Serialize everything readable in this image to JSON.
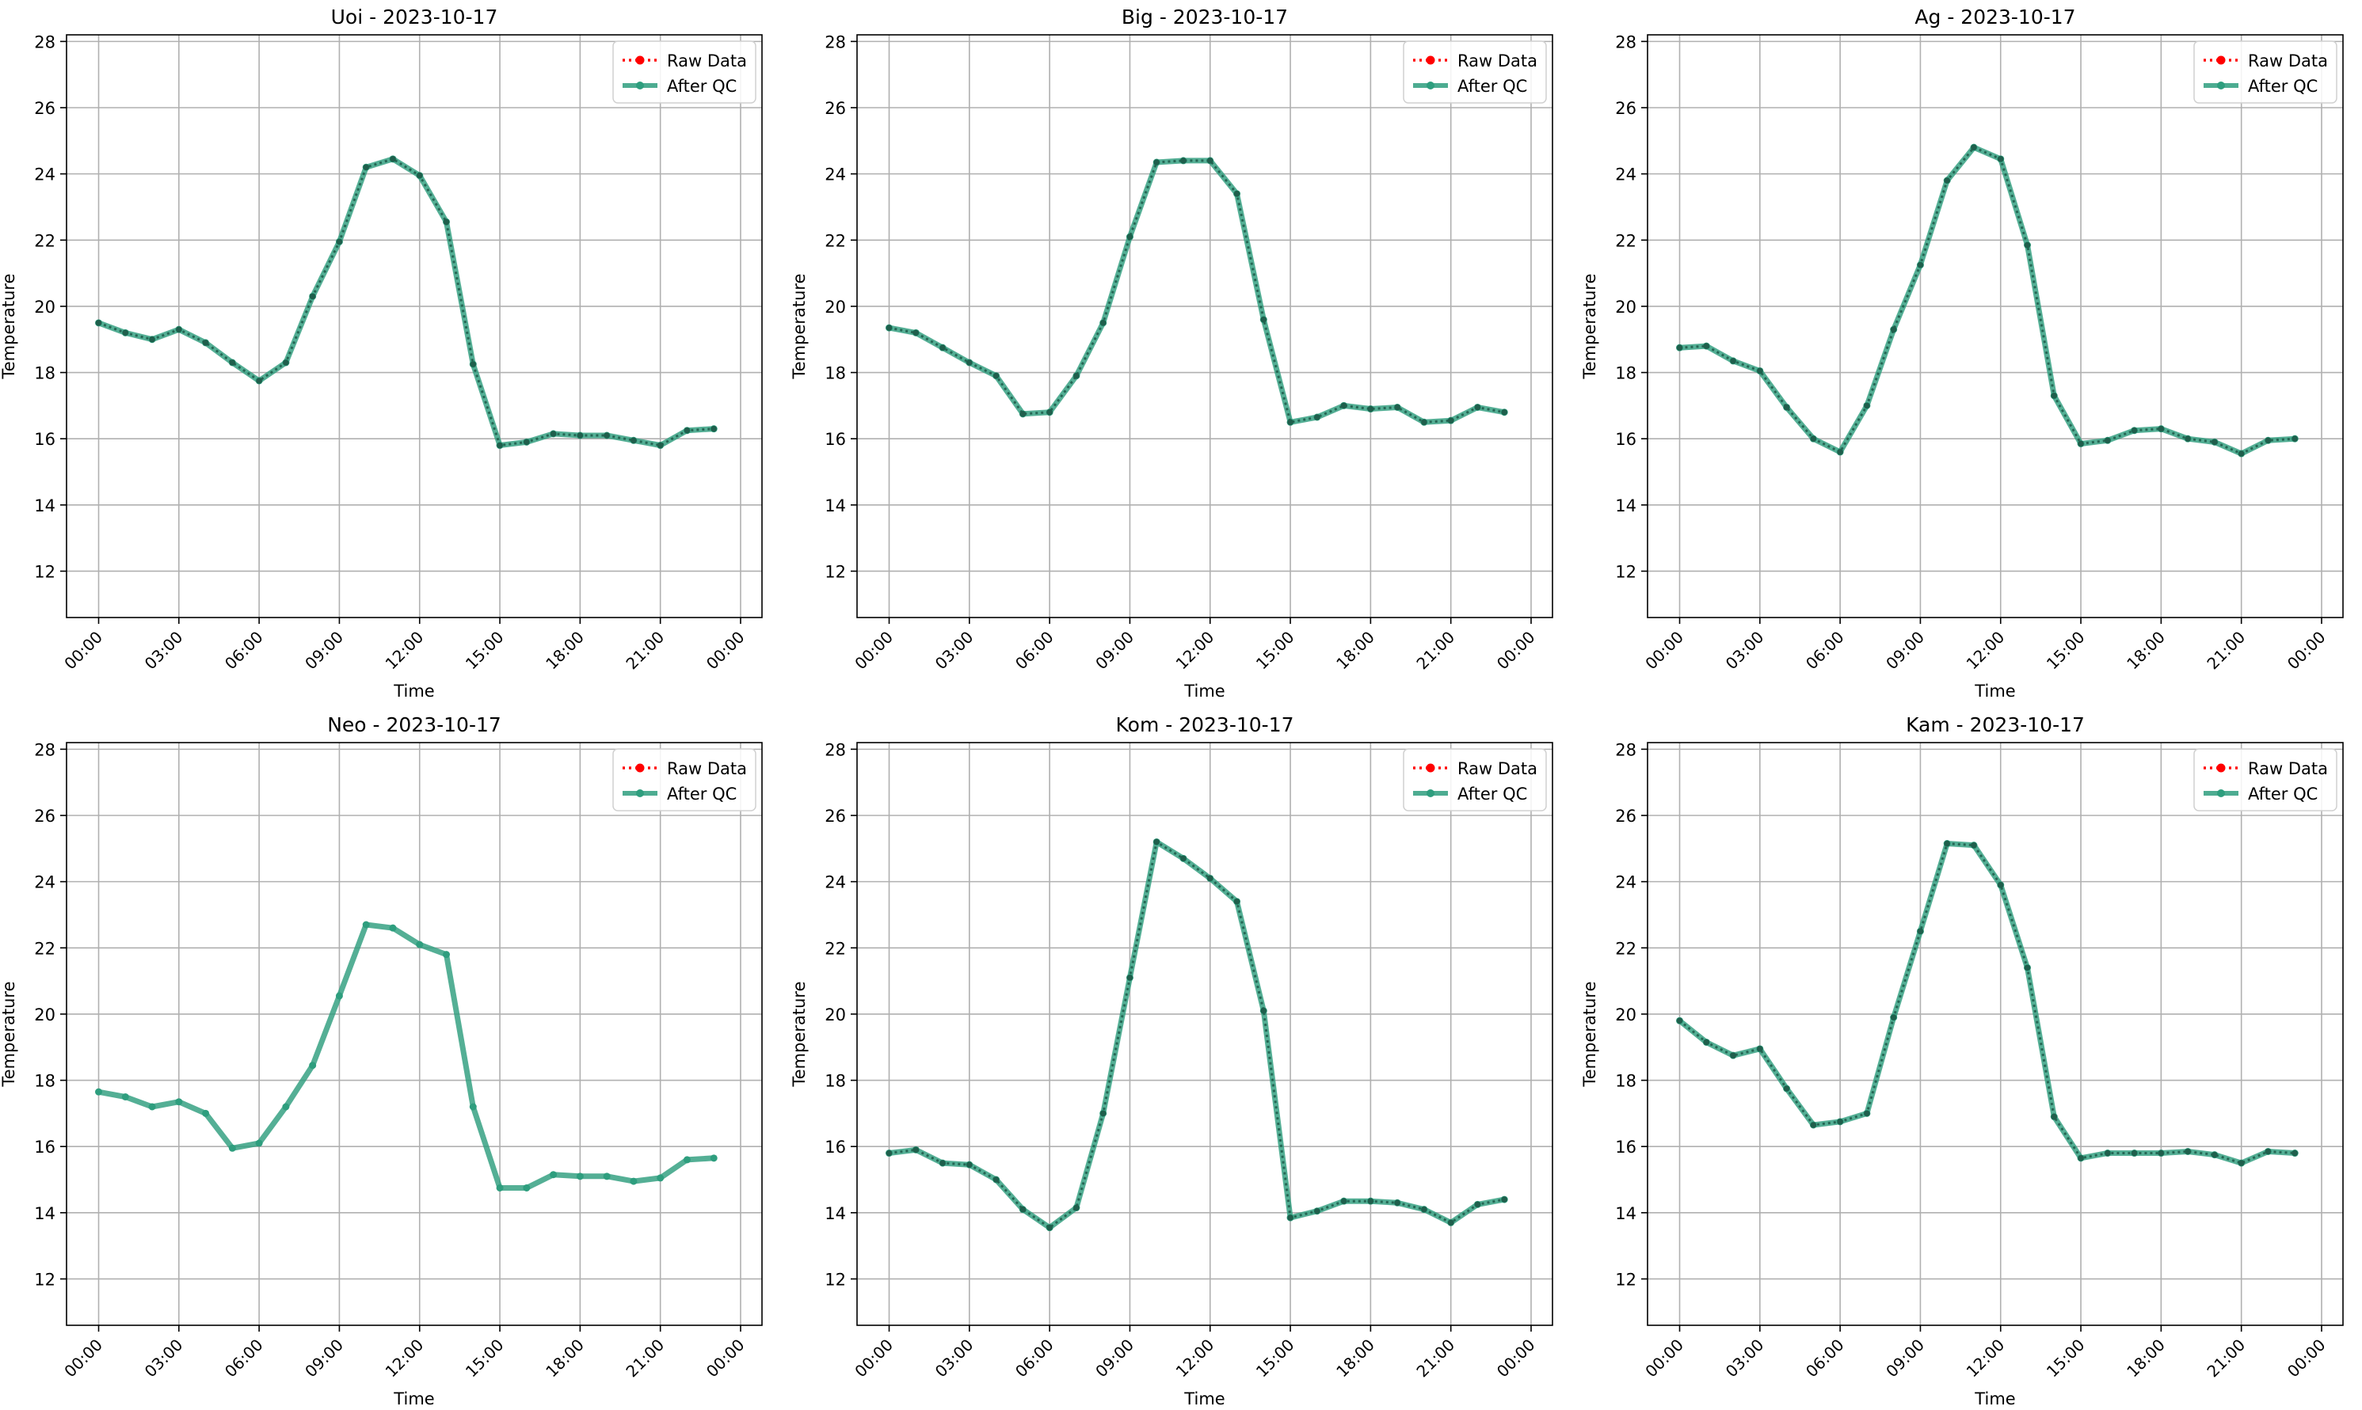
{
  "legend": {
    "raw_label": "Raw Data",
    "qc_label": "After QC"
  },
  "colors": {
    "raw": "#ff0000",
    "qc": "#2e9e7e",
    "grid": "#b0b0b0",
    "marker": "#1f5f4c"
  },
  "chart_data": [
    {
      "type": "line",
      "title": "Uoi - 2023-10-17",
      "xlabel": "Time",
      "ylabel": "Temperature",
      "xticks": [
        "00:00",
        "03:00",
        "06:00",
        "09:00",
        "12:00",
        "15:00",
        "18:00",
        "21:00",
        "00:00"
      ],
      "yticks": [
        12,
        14,
        16,
        18,
        20,
        22,
        24,
        26,
        28
      ],
      "ylim": [
        10.6,
        28.2
      ],
      "legend_position": "top-right",
      "grid": true,
      "x_hours": [
        0,
        1,
        2,
        3,
        4,
        5,
        6,
        7,
        8,
        9,
        10,
        11,
        12,
        13,
        14,
        15,
        16,
        17,
        18,
        19,
        20,
        21,
        22,
        23
      ],
      "series": [
        {
          "name": "Raw Data",
          "style": "dotted",
          "values": [
            19.5,
            19.2,
            19.0,
            19.3,
            18.9,
            18.3,
            17.75,
            18.3,
            20.3,
            21.95,
            24.2,
            24.45,
            23.95,
            22.55,
            18.25,
            15.8,
            15.9,
            16.15,
            16.1,
            16.1,
            15.95,
            15.8,
            16.25,
            16.3
          ]
        },
        {
          "name": "After QC",
          "style": "solid",
          "values": [
            19.5,
            19.2,
            19.0,
            19.3,
            18.9,
            18.3,
            17.75,
            18.3,
            20.3,
            21.95,
            24.2,
            24.45,
            23.95,
            22.55,
            18.25,
            15.8,
            15.9,
            16.15,
            16.1,
            16.1,
            15.95,
            15.8,
            16.25,
            16.3
          ]
        }
      ]
    },
    {
      "type": "line",
      "title": "Big - 2023-10-17",
      "xlabel": "Time",
      "ylabel": "Temperature",
      "xticks": [
        "00:00",
        "03:00",
        "06:00",
        "09:00",
        "12:00",
        "15:00",
        "18:00",
        "21:00",
        "00:00"
      ],
      "yticks": [
        12,
        14,
        16,
        18,
        20,
        22,
        24,
        26,
        28
      ],
      "ylim": [
        10.6,
        28.2
      ],
      "legend_position": "top-right",
      "grid": true,
      "x_hours": [
        0,
        1,
        2,
        3,
        4,
        5,
        6,
        7,
        8,
        9,
        10,
        11,
        12,
        13,
        14,
        15,
        16,
        17,
        18,
        19,
        20,
        21,
        22,
        23
      ],
      "series": [
        {
          "name": "Raw Data",
          "style": "dotted",
          "values": [
            19.35,
            19.2,
            18.75,
            18.3,
            17.9,
            16.75,
            16.8,
            17.9,
            19.5,
            22.1,
            24.35,
            24.4,
            24.4,
            23.4,
            19.6,
            16.5,
            16.65,
            17.0,
            16.9,
            16.95,
            16.5,
            16.55,
            16.95,
            16.8
          ]
        },
        {
          "name": "After QC",
          "style": "solid",
          "values": [
            19.35,
            19.2,
            18.75,
            18.3,
            17.9,
            16.75,
            16.8,
            17.9,
            19.5,
            22.1,
            24.35,
            24.4,
            24.4,
            23.4,
            19.6,
            16.5,
            16.65,
            17.0,
            16.9,
            16.95,
            16.5,
            16.55,
            16.95,
            16.8
          ]
        }
      ]
    },
    {
      "type": "line",
      "title": "Ag - 2023-10-17",
      "xlabel": "Time",
      "ylabel": "Temperature",
      "xticks": [
        "00:00",
        "03:00",
        "06:00",
        "09:00",
        "12:00",
        "15:00",
        "18:00",
        "21:00",
        "00:00"
      ],
      "yticks": [
        12,
        14,
        16,
        18,
        20,
        22,
        24,
        26,
        28
      ],
      "ylim": [
        10.6,
        28.2
      ],
      "legend_position": "top-right",
      "grid": true,
      "x_hours": [
        0,
        1,
        2,
        3,
        4,
        5,
        6,
        7,
        8,
        9,
        10,
        11,
        12,
        13,
        14,
        15,
        16,
        17,
        18,
        19,
        20,
        21,
        22,
        23
      ],
      "series": [
        {
          "name": "Raw Data",
          "style": "dotted",
          "values": [
            18.75,
            18.8,
            18.35,
            18.05,
            16.95,
            16.0,
            15.6,
            17.0,
            19.3,
            21.25,
            23.8,
            24.8,
            24.45,
            21.85,
            17.3,
            15.85,
            15.95,
            16.25,
            16.3,
            16.0,
            15.9,
            15.55,
            15.95,
            16.0
          ]
        },
        {
          "name": "After QC",
          "style": "solid",
          "values": [
            18.75,
            18.8,
            18.35,
            18.05,
            16.95,
            16.0,
            15.6,
            17.0,
            19.3,
            21.25,
            23.8,
            24.8,
            24.45,
            21.85,
            17.3,
            15.85,
            15.95,
            16.25,
            16.3,
            16.0,
            15.9,
            15.55,
            15.95,
            16.0
          ]
        }
      ]
    },
    {
      "type": "line",
      "title": "Neo - 2023-10-17",
      "xlabel": "Time",
      "ylabel": "Temperature",
      "xticks": [
        "00:00",
        "03:00",
        "06:00",
        "09:00",
        "12:00",
        "15:00",
        "18:00",
        "21:00",
        "00:00"
      ],
      "yticks": [
        12,
        14,
        16,
        18,
        20,
        22,
        24,
        26,
        28
      ],
      "ylim": [
        10.6,
        28.2
      ],
      "legend_position": "top-right",
      "grid": true,
      "x_hours": [
        0,
        1,
        2,
        3,
        4,
        5,
        6,
        7,
        8,
        9,
        10,
        11,
        12,
        13,
        14,
        15,
        16,
        17,
        18,
        19,
        20,
        21,
        22,
        23
      ],
      "series": [
        {
          "name": "Raw Data",
          "style": "dotted",
          "values": [
            null,
            null,
            null,
            null,
            null,
            null,
            null,
            null,
            null,
            null,
            null,
            null,
            null,
            null,
            null,
            null,
            null,
            null,
            null,
            null,
            null,
            null,
            null,
            null
          ]
        },
        {
          "name": "After QC",
          "style": "solid",
          "values": [
            17.65,
            17.5,
            17.2,
            17.35,
            17.0,
            15.95,
            16.1,
            17.2,
            18.45,
            20.55,
            22.7,
            22.6,
            22.1,
            21.8,
            17.2,
            14.75,
            14.75,
            15.15,
            15.1,
            15.1,
            14.95,
            15.05,
            15.6,
            15.65
          ]
        }
      ]
    },
    {
      "type": "line",
      "title": "Kom - 2023-10-17",
      "xlabel": "Time",
      "ylabel": "Temperature",
      "xticks": [
        "00:00",
        "03:00",
        "06:00",
        "09:00",
        "12:00",
        "15:00",
        "18:00",
        "21:00",
        "00:00"
      ],
      "yticks": [
        12,
        14,
        16,
        18,
        20,
        22,
        24,
        26,
        28
      ],
      "ylim": [
        10.6,
        28.2
      ],
      "legend_position": "top-right",
      "grid": true,
      "x_hours": [
        0,
        1,
        2,
        3,
        4,
        5,
        6,
        7,
        8,
        9,
        10,
        11,
        12,
        13,
        14,
        15,
        16,
        17,
        18,
        19,
        20,
        21,
        22,
        23
      ],
      "series": [
        {
          "name": "Raw Data",
          "style": "dotted",
          "values": [
            15.8,
            15.9,
            15.5,
            15.45,
            15.0,
            14.1,
            13.55,
            14.15,
            17.0,
            21.1,
            25.2,
            24.7,
            24.1,
            23.4,
            20.1,
            13.85,
            14.05,
            14.35,
            14.35,
            14.3,
            14.1,
            13.7,
            14.25,
            14.4
          ]
        },
        {
          "name": "After QC",
          "style": "solid",
          "values": [
            15.8,
            15.9,
            15.5,
            15.45,
            15.0,
            14.1,
            13.55,
            14.15,
            17.0,
            21.1,
            25.2,
            24.7,
            24.1,
            23.4,
            20.1,
            13.85,
            14.05,
            14.35,
            14.35,
            14.3,
            14.1,
            13.7,
            14.25,
            14.4
          ]
        }
      ]
    },
    {
      "type": "line",
      "title": "Kam - 2023-10-17",
      "xlabel": "Time",
      "ylabel": "Temperature",
      "xticks": [
        "00:00",
        "03:00",
        "06:00",
        "09:00",
        "12:00",
        "15:00",
        "18:00",
        "21:00",
        "00:00"
      ],
      "yticks": [
        12,
        14,
        16,
        18,
        20,
        22,
        24,
        26,
        28
      ],
      "ylim": [
        10.6,
        28.2
      ],
      "legend_position": "top-right",
      "grid": true,
      "x_hours": [
        0,
        1,
        2,
        3,
        4,
        5,
        6,
        7,
        8,
        9,
        10,
        11,
        12,
        13,
        14,
        15,
        16,
        17,
        18,
        19,
        20,
        21,
        22,
        23
      ],
      "series": [
        {
          "name": "Raw Data",
          "style": "dotted",
          "values": [
            19.8,
            19.15,
            18.75,
            18.95,
            17.75,
            16.65,
            16.75,
            17.0,
            19.9,
            22.5,
            25.15,
            25.1,
            23.9,
            21.4,
            16.9,
            15.65,
            15.8,
            15.8,
            15.8,
            15.85,
            15.75,
            15.5,
            15.85,
            15.8
          ]
        },
        {
          "name": "After QC",
          "style": "solid",
          "values": [
            19.8,
            19.15,
            18.75,
            18.95,
            17.75,
            16.65,
            16.75,
            17.0,
            19.9,
            22.5,
            25.15,
            25.1,
            23.9,
            21.4,
            16.9,
            15.65,
            15.8,
            15.8,
            15.8,
            15.85,
            15.75,
            15.5,
            15.85,
            15.8
          ]
        }
      ]
    }
  ]
}
